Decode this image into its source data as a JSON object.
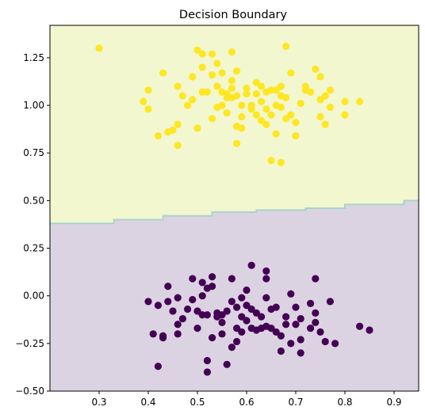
{
  "chart_data": {
    "type": "scatter",
    "title": "Decision Boundary",
    "xlabel": "",
    "ylabel": "",
    "xlim": [
      0.2,
      0.95
    ],
    "ylim": [
      -0.5,
      1.42
    ],
    "x_ticks": [
      0.3,
      0.4,
      0.5,
      0.6,
      0.7,
      0.8,
      0.9
    ],
    "x_tick_labels": [
      "0.3",
      "0.4",
      "0.5",
      "0.6",
      "0.7",
      "0.8",
      "0.9"
    ],
    "y_ticks": [
      -0.5,
      -0.25,
      0.0,
      0.25,
      0.5,
      0.75,
      1.0,
      1.25
    ],
    "y_tick_labels": [
      "−0.50",
      "−0.25",
      "0.00",
      "0.25",
      "0.50",
      "0.75",
      "1.00",
      "1.25"
    ],
    "grid": false,
    "colors": {
      "region_upper": "#f3f7cf",
      "region_lower": "#dcd3e2",
      "boundary_line": "#a8d5c8",
      "class_1": "#fde725",
      "class_0": "#440154"
    },
    "boundary": {
      "x": [
        0.2,
        0.33,
        0.33,
        0.43,
        0.43,
        0.53,
        0.53,
        0.62,
        0.62,
        0.72,
        0.72,
        0.8,
        0.8,
        0.92,
        0.92,
        0.95
      ],
      "y": [
        0.38,
        0.38,
        0.4,
        0.4,
        0.42,
        0.42,
        0.44,
        0.44,
        0.45,
        0.45,
        0.46,
        0.46,
        0.48,
        0.48,
        0.5,
        0.5
      ]
    },
    "series": [
      {
        "values": [
          [
            0.3,
            1.3
          ],
          [
            0.39,
            1.02
          ],
          [
            0.4,
            1.08
          ],
          [
            0.4,
            0.98
          ],
          [
            0.42,
            0.84
          ],
          [
            0.43,
            1.17
          ],
          [
            0.44,
            0.86
          ],
          [
            0.45,
            0.87
          ],
          [
            0.46,
            1.1
          ],
          [
            0.46,
            0.9
          ],
          [
            0.46,
            0.79
          ],
          [
            0.47,
            1.05
          ],
          [
            0.48,
            1.0
          ],
          [
            0.49,
            1.03
          ],
          [
            0.49,
            1.15
          ],
          [
            0.5,
            1.29
          ],
          [
            0.5,
            0.88
          ],
          [
            0.51,
            1.27
          ],
          [
            0.51,
            1.07
          ],
          [
            0.51,
            1.2
          ],
          [
            0.52,
            1.07
          ],
          [
            0.53,
            1.27
          ],
          [
            0.53,
            0.93
          ],
          [
            0.53,
            1.16
          ],
          [
            0.54,
            0.99
          ],
          [
            0.54,
            1.1
          ],
          [
            0.54,
            1.22
          ],
          [
            0.55,
            1.07
          ],
          [
            0.55,
            1.0
          ],
          [
            0.55,
            1.17
          ],
          [
            0.56,
            1.04
          ],
          [
            0.56,
            1.06
          ],
          [
            0.56,
            0.96
          ],
          [
            0.57,
            1.09
          ],
          [
            0.57,
            1.13
          ],
          [
            0.57,
            1.04
          ],
          [
            0.57,
            1.28
          ],
          [
            0.58,
            1.05
          ],
          [
            0.58,
            0.89
          ],
          [
            0.58,
            0.8
          ],
          [
            0.58,
            1.18
          ],
          [
            0.59,
            1.0
          ],
          [
            0.59,
            0.88
          ],
          [
            0.59,
            0.94
          ],
          [
            0.6,
            1.09
          ],
          [
            0.6,
            1.06
          ],
          [
            0.61,
            1.0
          ],
          [
            0.61,
            0.98
          ],
          [
            0.62,
            1.12
          ],
          [
            0.62,
            1.06
          ],
          [
            0.62,
            0.95
          ],
          [
            0.63,
            1.1
          ],
          [
            0.63,
            1.02
          ],
          [
            0.63,
            0.92
          ],
          [
            0.64,
            1.07
          ],
          [
            0.64,
            0.98
          ],
          [
            0.64,
            0.9
          ],
          [
            0.65,
            1.08
          ],
          [
            0.65,
            0.95
          ],
          [
            0.65,
            0.71
          ],
          [
            0.66,
            1.08
          ],
          [
            0.66,
            1.0
          ],
          [
            0.66,
            0.85
          ],
          [
            0.67,
            1.1
          ],
          [
            0.67,
            1.05
          ],
          [
            0.67,
            0.99
          ],
          [
            0.67,
            0.7
          ],
          [
            0.68,
            1.04
          ],
          [
            0.68,
            0.93
          ],
          [
            0.68,
            1.31
          ],
          [
            0.69,
            1.17
          ],
          [
            0.69,
            0.95
          ],
          [
            0.7,
            0.91
          ],
          [
            0.7,
            0.84
          ],
          [
            0.71,
            1.01
          ],
          [
            0.72,
            1.1
          ],
          [
            0.72,
            1.08
          ],
          [
            0.73,
            1.07
          ],
          [
            0.74,
            1.19
          ],
          [
            0.75,
            1.15
          ],
          [
            0.75,
            1.03
          ],
          [
            0.75,
            0.94
          ],
          [
            0.76,
            0.9
          ],
          [
            0.76,
            1.05
          ],
          [
            0.77,
            1.08
          ],
          [
            0.77,
            0.99
          ],
          [
            0.8,
            1.02
          ],
          [
            0.8,
            0.95
          ],
          [
            0.83,
            1.02
          ]
        ]
      },
      {
        "values": [
          [
            0.4,
            -0.03
          ],
          [
            0.41,
            -0.2
          ],
          [
            0.42,
            -0.37
          ],
          [
            0.42,
            -0.05
          ],
          [
            0.43,
            -0.21
          ],
          [
            0.43,
            -0.22
          ],
          [
            0.44,
            -0.03
          ],
          [
            0.44,
            0.05
          ],
          [
            0.45,
            -0.08
          ],
          [
            0.46,
            -0.01
          ],
          [
            0.46,
            -0.15
          ],
          [
            0.46,
            -0.2
          ],
          [
            0.47,
            -0.12
          ],
          [
            0.48,
            -0.07
          ],
          [
            0.49,
            0.09
          ],
          [
            0.49,
            -0.02
          ],
          [
            0.5,
            -0.17
          ],
          [
            0.5,
            -0.08
          ],
          [
            0.51,
            0.07
          ],
          [
            0.51,
            0.0
          ],
          [
            0.51,
            -0.1
          ],
          [
            0.52,
            0.04
          ],
          [
            0.52,
            -0.1
          ],
          [
            0.52,
            -0.34
          ],
          [
            0.52,
            -0.4
          ],
          [
            0.53,
            0.1
          ],
          [
            0.53,
            0.05
          ],
          [
            0.53,
            -0.22
          ],
          [
            0.54,
            -0.09
          ],
          [
            0.54,
            -0.11
          ],
          [
            0.55,
            -0.1
          ],
          [
            0.55,
            -0.14
          ],
          [
            0.55,
            -0.2
          ],
          [
            0.56,
            -0.08
          ],
          [
            0.56,
            -0.36
          ],
          [
            0.57,
            0.09
          ],
          [
            0.57,
            -0.03
          ],
          [
            0.57,
            -0.27
          ],
          [
            0.58,
            -0.06
          ],
          [
            0.58,
            -0.17
          ],
          [
            0.58,
            -0.24
          ],
          [
            0.59,
            -0.01
          ],
          [
            0.59,
            -0.11
          ],
          [
            0.59,
            -0.19
          ],
          [
            0.6,
            0.03
          ],
          [
            0.6,
            -0.05
          ],
          [
            0.6,
            -0.13
          ],
          [
            0.61,
            0.16
          ],
          [
            0.61,
            -0.07
          ],
          [
            0.61,
            -0.17
          ],
          [
            0.62,
            -0.09
          ],
          [
            0.62,
            -0.18
          ],
          [
            0.63,
            -0.11
          ],
          [
            0.63,
            -0.17
          ],
          [
            0.64,
            0.13
          ],
          [
            0.64,
            0.09
          ],
          [
            0.64,
            -0.01
          ],
          [
            0.64,
            -0.16
          ],
          [
            0.65,
            -0.07
          ],
          [
            0.65,
            -0.17
          ],
          [
            0.66,
            -0.06
          ],
          [
            0.66,
            -0.19
          ],
          [
            0.67,
            -0.21
          ],
          [
            0.67,
            -0.29
          ],
          [
            0.68,
            -0.11
          ],
          [
            0.68,
            -0.15
          ],
          [
            0.69,
            0.01
          ],
          [
            0.69,
            -0.25
          ],
          [
            0.7,
            -0.06
          ],
          [
            0.7,
            -0.15
          ],
          [
            0.71,
            -0.12
          ],
          [
            0.71,
            -0.23
          ],
          [
            0.71,
            -0.3
          ],
          [
            0.73,
            -0.04
          ],
          [
            0.73,
            -0.17
          ],
          [
            0.74,
            0.09
          ],
          [
            0.74,
            -0.09
          ],
          [
            0.74,
            -0.14
          ],
          [
            0.75,
            -0.19
          ],
          [
            0.76,
            -0.24
          ],
          [
            0.77,
            -0.03
          ],
          [
            0.78,
            -0.25
          ],
          [
            0.83,
            -0.16
          ],
          [
            0.85,
            -0.18
          ]
        ]
      }
    ]
  }
}
